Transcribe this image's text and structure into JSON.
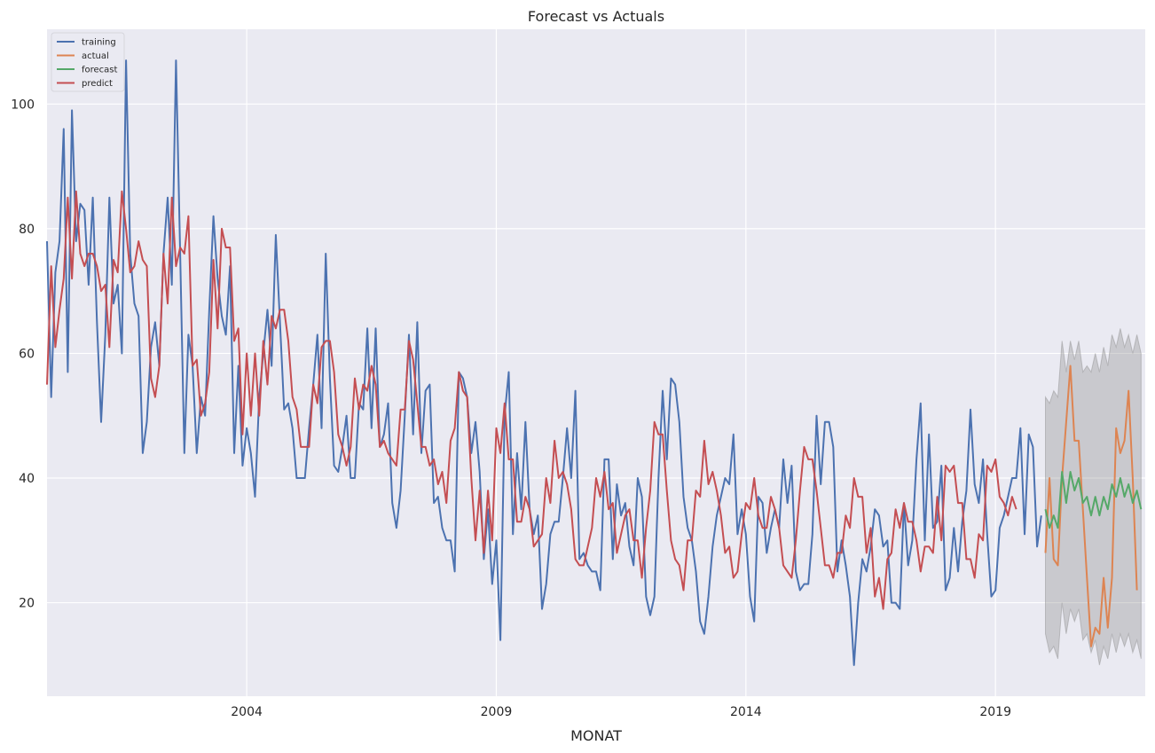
{
  "chart_data": {
    "type": "line",
    "title": "Forecast vs Actuals",
    "xlabel": "MONAT",
    "ylabel": "",
    "xlim": [
      2000.0,
      2022.0
    ],
    "ylim": [
      5,
      112
    ],
    "x_ticks": [
      2004,
      2009,
      2014,
      2019
    ],
    "y_ticks": [
      20,
      40,
      60,
      80,
      100
    ],
    "grid": true,
    "legend_position": "top-left",
    "legend": [
      "training",
      "actual",
      "forecast",
      "predict"
    ],
    "colors": {
      "training": "#4c72b0",
      "actual": "#dd8452",
      "forecast": "#55a868",
      "predict": "#c44e52",
      "confidence_band": "#8c8c8c",
      "plot_background": "#eaeaf2",
      "grid": "#ffffff"
    },
    "series": [
      {
        "name": "training",
        "start": "2000-01",
        "values": [
          78,
          53,
          73,
          78,
          96,
          57,
          99,
          78,
          84,
          83,
          71,
          85,
          65,
          49,
          63,
          85,
          68,
          71,
          60,
          107,
          76,
          68,
          66,
          44,
          49,
          61,
          65,
          58,
          76,
          85,
          71,
          107,
          76,
          44,
          63,
          58,
          44,
          53,
          50,
          67,
          82,
          72,
          66,
          63,
          74,
          44,
          58,
          42,
          48,
          44,
          37,
          53,
          60,
          67,
          58,
          79,
          65,
          51,
          52,
          48,
          40,
          40,
          40,
          48,
          55,
          63,
          48,
          76,
          56,
          42,
          41,
          45,
          50,
          40,
          40,
          52,
          51,
          64,
          48,
          64,
          45,
          47,
          52,
          36,
          32,
          38,
          50,
          63,
          47,
          65,
          44,
          54,
          55,
          36,
          37,
          32,
          30,
          30,
          25,
          57,
          56,
          53,
          44,
          49,
          41,
          27,
          35,
          23,
          30,
          14,
          50,
          57,
          31,
          44,
          35,
          49,
          35,
          31,
          34,
          19,
          23,
          31,
          33,
          33,
          40,
          48,
          40,
          54,
          27,
          28,
          26,
          25,
          25,
          22,
          43,
          43,
          27,
          39,
          34,
          36,
          29,
          26,
          40,
          37,
          21,
          18,
          21,
          40,
          54,
          43,
          56,
          55,
          49,
          37,
          32,
          30,
          25,
          17,
          15,
          21,
          29,
          34,
          37,
          40,
          39,
          47,
          31,
          35,
          31,
          21,
          17,
          37,
          36,
          28,
          32,
          35,
          32,
          43,
          36,
          42,
          25,
          22,
          23,
          23,
          31,
          50,
          39,
          49,
          49,
          45,
          25,
          30,
          26,
          21,
          10,
          20,
          27,
          25,
          29,
          35,
          34,
          29,
          30,
          20,
          20,
          19,
          36,
          26,
          30,
          43,
          52,
          30,
          47,
          32,
          33,
          42,
          22,
          24,
          32,
          25,
          33,
          38,
          51,
          39,
          36,
          43,
          31,
          21,
          22,
          32,
          34,
          37,
          40,
          40,
          48,
          31,
          47,
          45,
          29,
          34
        ],
        "values_note": ""
      },
      {
        "name": "predict",
        "start": "2000-01",
        "values": [
          55,
          74,
          61,
          67,
          72,
          85,
          72,
          86,
          76,
          74,
          76,
          76,
          74,
          70,
          71,
          61,
          75,
          73,
          86,
          80,
          73,
          74,
          78,
          75,
          74,
          56,
          53,
          58,
          76,
          68,
          85,
          74,
          77,
          76,
          82,
          58,
          59,
          50,
          52,
          57,
          75,
          64,
          80,
          77,
          77,
          62,
          64,
          47,
          60,
          50,
          60,
          50,
          62,
          55,
          66,
          64,
          67,
          67,
          62,
          53,
          51,
          45,
          45,
          45,
          55,
          52,
          61,
          62,
          62,
          57,
          47,
          45,
          42,
          45,
          56,
          51,
          55,
          54,
          58,
          55,
          45,
          46,
          44,
          43,
          42,
          51,
          51,
          62,
          59,
          52,
          45,
          45,
          42,
          43,
          39,
          41,
          36,
          46,
          48,
          57,
          54,
          53,
          40,
          30,
          38,
          28,
          38,
          30,
          48,
          44,
          52,
          43,
          43,
          33,
          33,
          37,
          35,
          29,
          30,
          31,
          40,
          36,
          46,
          40,
          41,
          39,
          35,
          27,
          26,
          26,
          29,
          32,
          40,
          37,
          41,
          35,
          36,
          28,
          31,
          34,
          35,
          30,
          30,
          24,
          32,
          38,
          49,
          47,
          47,
          38,
          30,
          27,
          26,
          22,
          30,
          30,
          38,
          37,
          46,
          39,
          41,
          38,
          34,
          28,
          29,
          24,
          25,
          31,
          36,
          35,
          40,
          34,
          32,
          32,
          37,
          35,
          32,
          26,
          25,
          24,
          30,
          38,
          45,
          43,
          43,
          38,
          32,
          26,
          26,
          24,
          28,
          28,
          34,
          32,
          40,
          37,
          37,
          28,
          32,
          21,
          24,
          19,
          27,
          28,
          35,
          32,
          36,
          33,
          33,
          30,
          25,
          29,
          29,
          28,
          37,
          30,
          42,
          41,
          42,
          36,
          36,
          27,
          27,
          24,
          31,
          30,
          42,
          41,
          43,
          37,
          36,
          34,
          37,
          35
        ]
      },
      {
        "name": "actual",
        "start": "2020-01",
        "values": [
          28,
          40,
          27,
          26,
          40,
          49,
          58,
          46,
          46,
          35,
          24,
          13,
          16,
          15,
          24,
          16,
          24,
          48,
          44,
          46,
          54,
          40,
          22
        ]
      },
      {
        "name": "forecast",
        "start": "2020-01",
        "values": [
          35,
          32,
          34,
          32,
          41,
          36,
          41,
          38,
          40,
          36,
          37,
          34,
          37,
          34,
          37,
          35,
          39,
          37,
          40,
          37,
          39,
          36,
          38,
          35
        ]
      },
      {
        "name": "confidence_band",
        "start": "2020-01",
        "upper": [
          53,
          52,
          54,
          53,
          62,
          57,
          62,
          59,
          62,
          57,
          58,
          57,
          60,
          57,
          61,
          58,
          63,
          61,
          64,
          61,
          63,
          60,
          63,
          60
        ],
        "lower": [
          15,
          12,
          13,
          11,
          20,
          15,
          19,
          17,
          19,
          14,
          15,
          12,
          14,
          10,
          13,
          11,
          15,
          12,
          15,
          13,
          15,
          12,
          14,
          11
        ]
      }
    ]
  }
}
